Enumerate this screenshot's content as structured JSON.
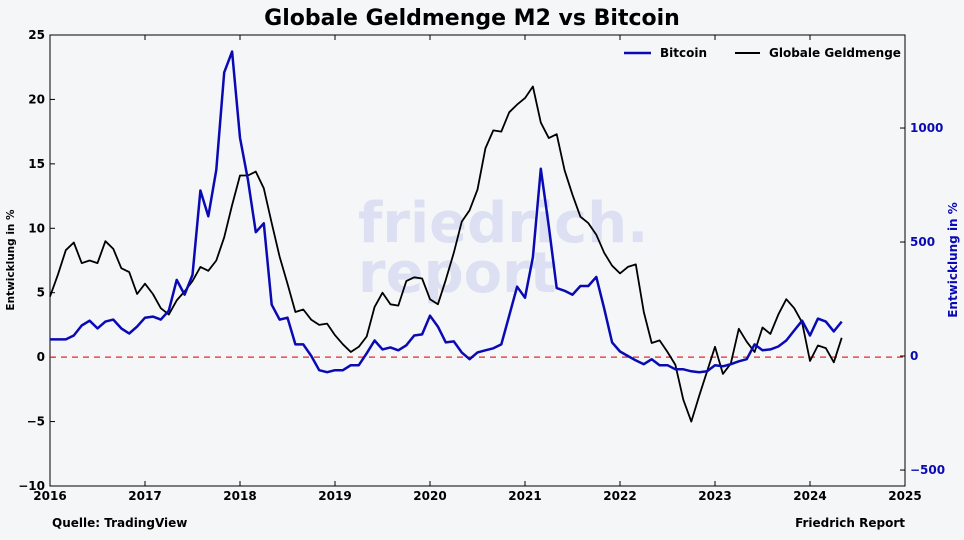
{
  "chart_data": {
    "type": "line",
    "title": "Globale Geldmenge M2 vs Bitcoin",
    "ylabel_left": "Entwicklung in %",
    "ylabel_right": "Entwicklung in %",
    "xlim": [
      "2016",
      "2025"
    ],
    "ylim_left": [
      -10,
      25
    ],
    "ylim_right": [
      -570,
      1408
    ],
    "x_ticks": [
      "2016",
      "2017",
      "2018",
      "2019",
      "2020",
      "2021",
      "2022",
      "2023",
      "2024",
      "2025"
    ],
    "y_ticks_left": [
      "25",
      "20",
      "15",
      "10",
      "5",
      "0",
      "−5",
      "−10"
    ],
    "y_ticks_left_values": [
      25,
      20,
      15,
      10,
      5,
      0,
      -5,
      -10
    ],
    "y_ticks_right": [
      "1000",
      "500",
      "0",
      "−500"
    ],
    "y_ticks_right_values": [
      1000,
      500,
      0,
      -500
    ],
    "reference_line": {
      "value": 0,
      "color": "#e8262a",
      "style": "dashed"
    },
    "grid": false,
    "legend_position": "top-right",
    "x": [
      "2016-01",
      "2016-02",
      "2016-03",
      "2016-04",
      "2016-05",
      "2016-06",
      "2016-07",
      "2016-08",
      "2016-09",
      "2016-10",
      "2016-11",
      "2016-12",
      "2017-01",
      "2017-02",
      "2017-03",
      "2017-04",
      "2017-05",
      "2017-06",
      "2017-07",
      "2017-08",
      "2017-09",
      "2017-10",
      "2017-11",
      "2017-12",
      "2018-01",
      "2018-02",
      "2018-03",
      "2018-04",
      "2018-05",
      "2018-06",
      "2018-07",
      "2018-08",
      "2018-09",
      "2018-10",
      "2018-11",
      "2018-12",
      "2019-01",
      "2019-02",
      "2019-03",
      "2019-04",
      "2019-05",
      "2019-06",
      "2019-07",
      "2019-08",
      "2019-09",
      "2019-10",
      "2019-11",
      "2019-12",
      "2020-01",
      "2020-02",
      "2020-03",
      "2020-04",
      "2020-05",
      "2020-06",
      "2020-07",
      "2020-08",
      "2020-09",
      "2020-10",
      "2020-11",
      "2020-12",
      "2021-01",
      "2021-02",
      "2021-03",
      "2021-04",
      "2021-05",
      "2021-06",
      "2021-07",
      "2021-08",
      "2021-09",
      "2021-10",
      "2021-11",
      "2021-12",
      "2022-01",
      "2022-02",
      "2022-03",
      "2022-04",
      "2022-05",
      "2022-06",
      "2022-07",
      "2022-08",
      "2022-09",
      "2022-10",
      "2022-11",
      "2022-12",
      "2023-01",
      "2023-02",
      "2023-03",
      "2023-04",
      "2023-05",
      "2023-06",
      "2023-07",
      "2023-08",
      "2023-09",
      "2023-10",
      "2023-11",
      "2023-12",
      "2024-01",
      "2024-02",
      "2024-03",
      "2024-04",
      "2024-05"
    ],
    "series": [
      {
        "name": "Bitcoin",
        "axis": "right",
        "color": "#0a0ab4",
        "values": [
          73,
          73,
          73,
          90,
          134,
          155,
          121,
          151,
          160,
          121,
          99,
          129,
          168,
          173,
          160,
          199,
          334,
          269,
          356,
          726,
          613,
          817,
          1244,
          1335,
          957,
          774,
          543,
          582,
          225,
          160,
          168,
          51,
          51,
          0,
          -62,
          -71,
          -62,
          -62,
          -40,
          -40,
          12,
          68,
          29,
          38,
          25,
          47,
          90,
          95,
          177,
          129,
          60,
          64,
          16,
          -14,
          16,
          25,
          34,
          51,
          177,
          304,
          256,
          434,
          821,
          569,
          298,
          286,
          269,
          307,
          307,
          347,
          208,
          60,
          20,
          0,
          -19,
          -36,
          -14,
          -40,
          -40,
          -58,
          -58,
          -67,
          -71,
          -67,
          -40,
          -45,
          -36,
          -23,
          -14,
          51,
          25,
          29,
          42,
          68,
          112,
          155,
          90,
          164,
          151,
          108,
          151
        ]
      },
      {
        "name": "Globale Geldmenge",
        "axis": "left",
        "color": "#000000",
        "values": [
          4.7,
          6.4,
          8.3,
          8.9,
          7.3,
          7.5,
          7.3,
          9.0,
          8.4,
          6.9,
          6.6,
          4.9,
          5.7,
          4.9,
          3.8,
          3.3,
          4.4,
          5.1,
          5.9,
          7.0,
          6.7,
          7.5,
          9.3,
          11.8,
          14.1,
          14.1,
          14.4,
          13.1,
          10.4,
          7.8,
          5.7,
          3.5,
          3.7,
          2.9,
          2.5,
          2.6,
          1.7,
          1.0,
          0.4,
          0.8,
          1.6,
          3.9,
          5.0,
          4.1,
          4.0,
          5.9,
          6.2,
          6.1,
          4.5,
          4.1,
          6.0,
          8.1,
          10.5,
          11.4,
          13.0,
          16.2,
          17.6,
          17.5,
          19.0,
          19.6,
          20.1,
          21.0,
          18.2,
          17.0,
          17.3,
          14.5,
          12.6,
          10.9,
          10.4,
          9.5,
          8.1,
          7.1,
          6.5,
          7.0,
          7.2,
          3.5,
          1.1,
          1.3,
          0.4,
          -0.6,
          -3.3,
          -5.0,
          -3.0,
          -1.1,
          0.8,
          -1.3,
          -0.5,
          2.2,
          1.2,
          0.4,
          2.3,
          1.8,
          3.3,
          4.5,
          3.8,
          2.7,
          -0.3,
          0.9,
          0.7,
          -0.4,
          1.5
        ]
      }
    ]
  },
  "watermark": "friedrich. report",
  "footer": {
    "source": "Quelle: TradingView",
    "brand": "Friedrich Report"
  }
}
